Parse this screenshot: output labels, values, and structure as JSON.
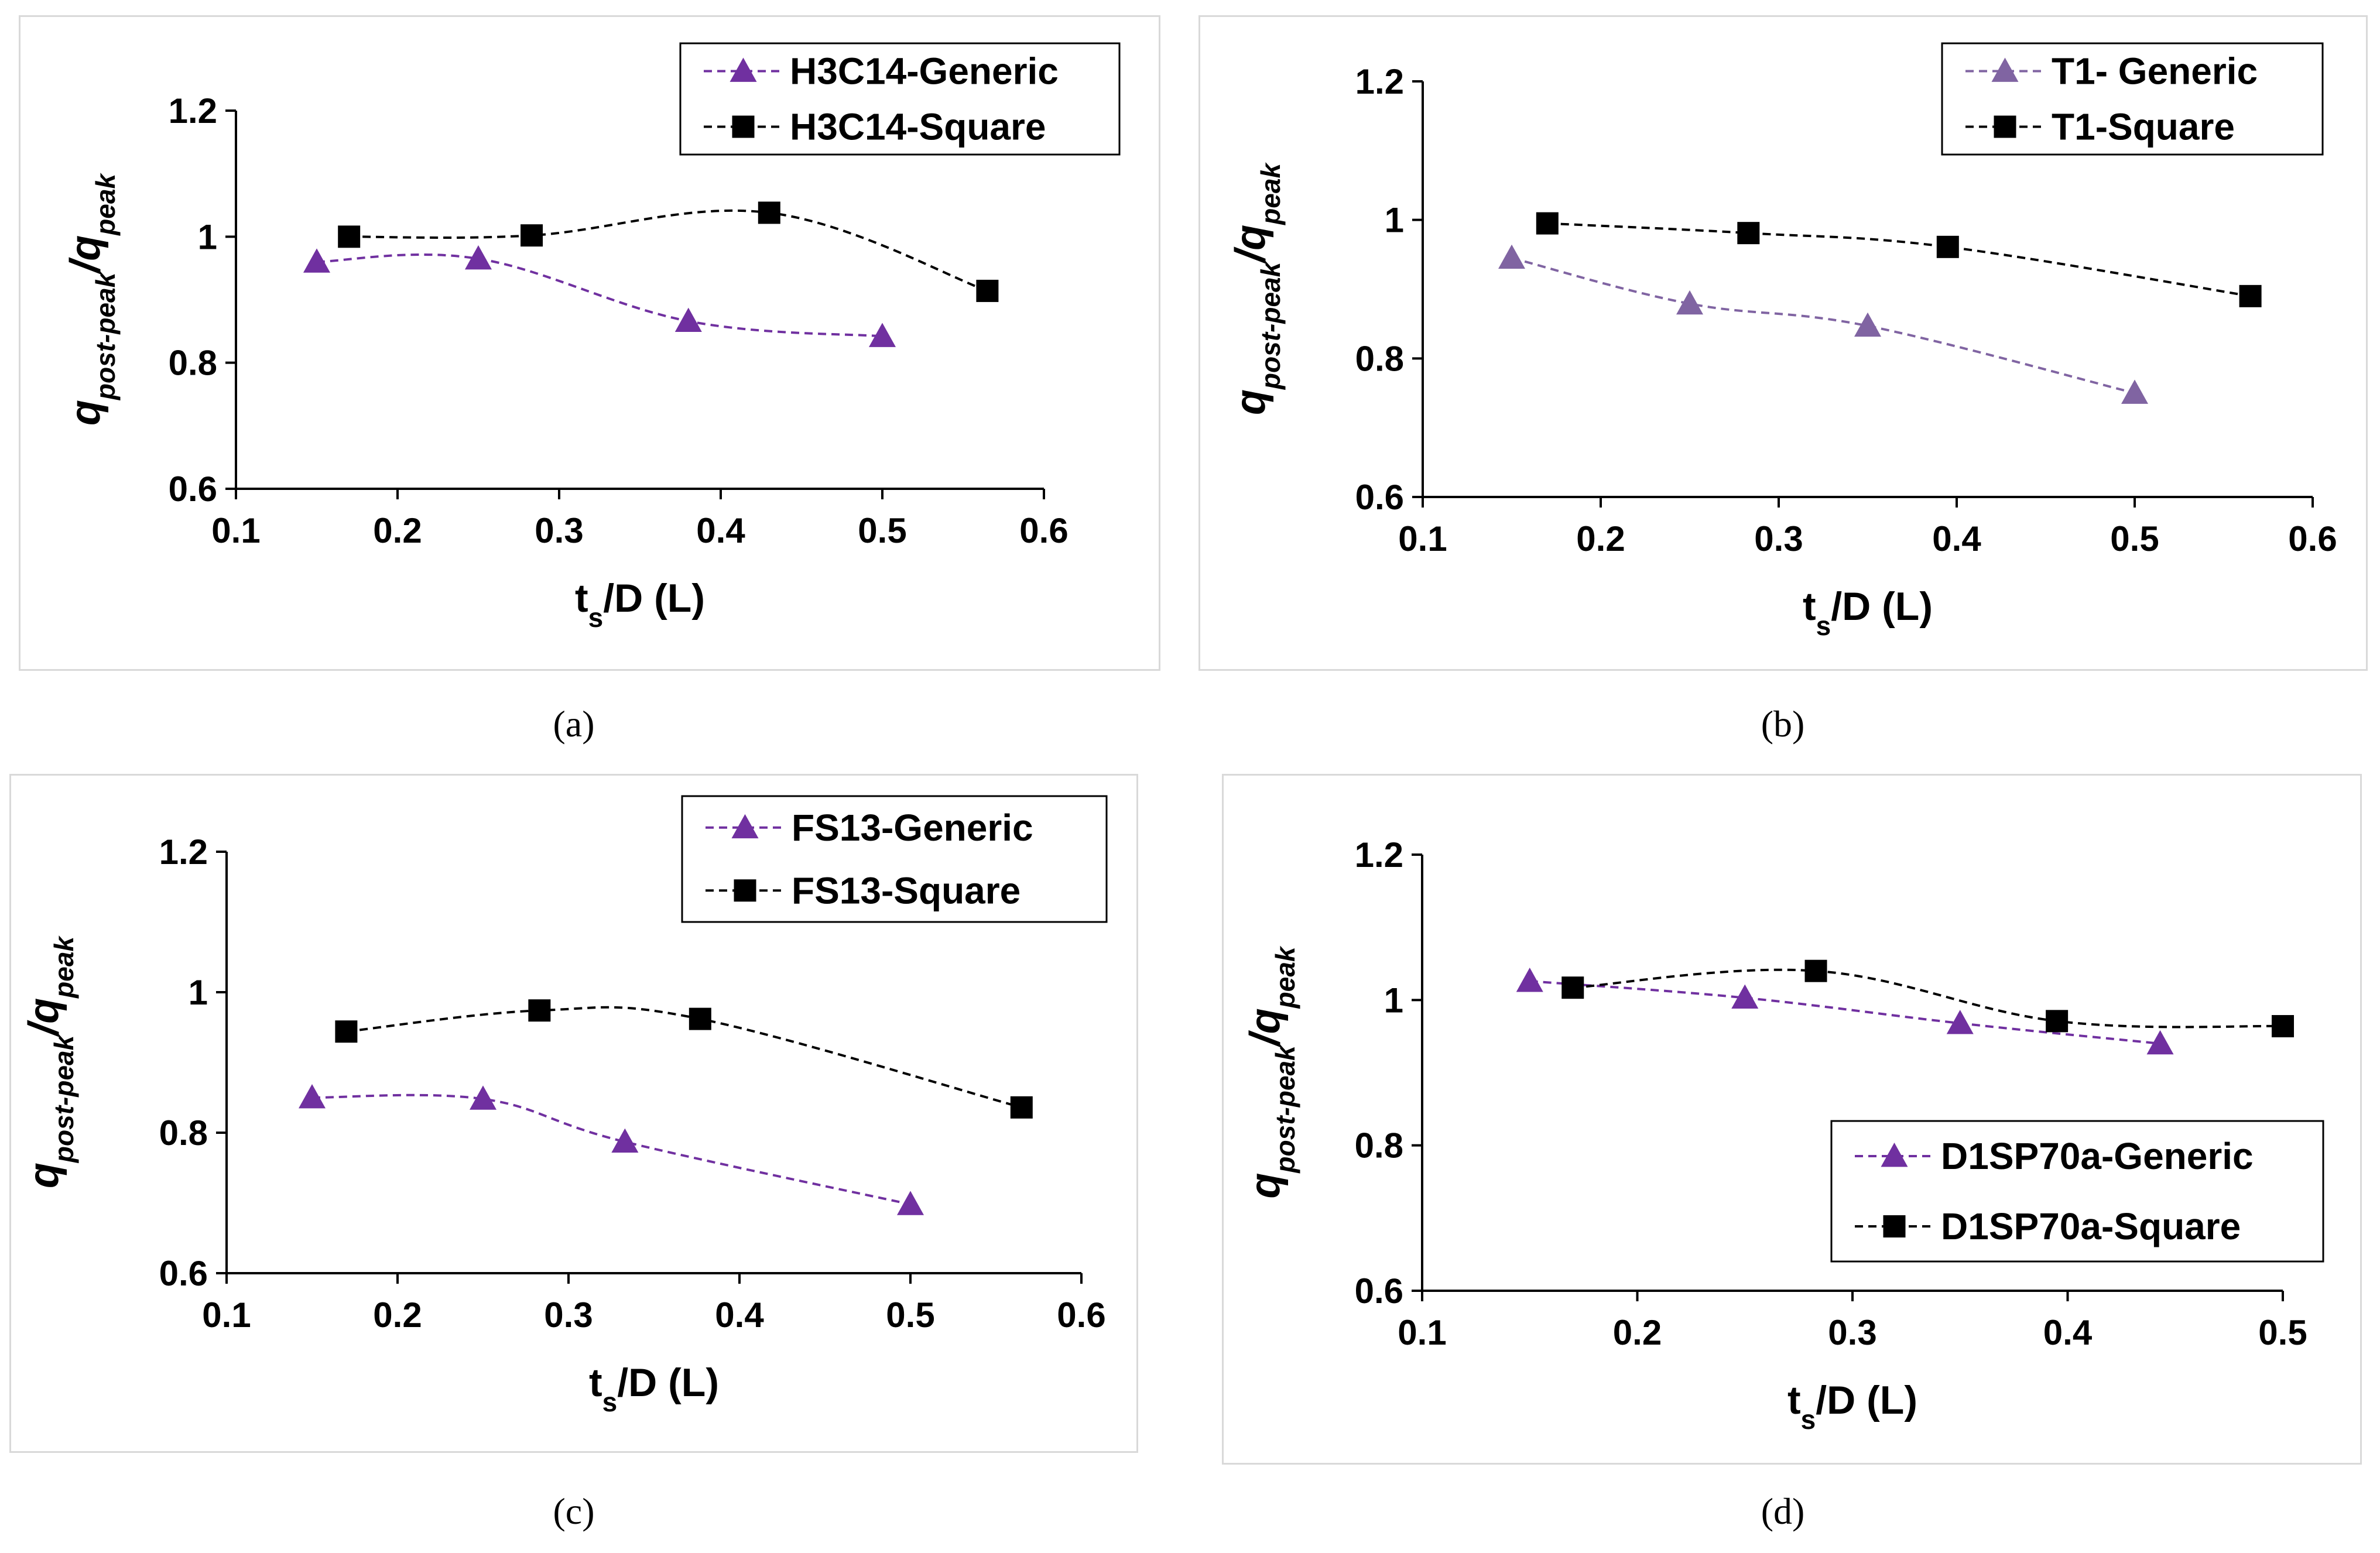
{
  "chart_data": [
    {
      "id": "a",
      "type": "line",
      "caption": "(a)",
      "title": "",
      "xlabel": {
        "main": "t",
        "sub": "s",
        "rest": "/D (L)"
      },
      "ylabel": {
        "main": "q",
        "sub": "post-peak",
        "sep": "/q",
        "sub2": "peak"
      },
      "xlim": [
        0.1,
        0.6
      ],
      "ylim": [
        0.6,
        1.2
      ],
      "xticks": [
        "0.1",
        "0.2",
        "0.3",
        "0.4",
        "0.5",
        "0.6"
      ],
      "yticks": [
        "0.6",
        "0.8",
        "1",
        "1.2"
      ],
      "legend_position": "top-right",
      "series": [
        {
          "name": "H3C14-Generic",
          "marker": "triangle",
          "color": "#7030a0",
          "x": [
            0.15,
            0.25,
            0.38,
            0.5
          ],
          "y": [
            0.96,
            0.965,
            0.866,
            0.842
          ]
        },
        {
          "name": "H3C14-Square",
          "marker": "square",
          "color": "#000000",
          "x": [
            0.17,
            0.283,
            0.43,
            0.565
          ],
          "y": [
            1.0,
            1.002,
            1.038,
            0.914
          ]
        }
      ]
    },
    {
      "id": "b",
      "type": "line",
      "caption": "(b)",
      "title": "",
      "xlabel": {
        "main": "t",
        "sub": "s",
        "rest": "/D (L)"
      },
      "ylabel": {
        "main": "q",
        "sub": "post-peak",
        "sep": "/q",
        "sub2": "peak"
      },
      "xlim": [
        0.1,
        0.6
      ],
      "ylim": [
        0.6,
        1.2
      ],
      "xticks": [
        "0.1",
        "0.2",
        "0.3",
        "0.4",
        "0.5",
        "0.6"
      ],
      "yticks": [
        "0.6",
        "0.8",
        "1",
        "1.2"
      ],
      "legend_position": "top-right",
      "series": [
        {
          "name": "T1- Generic",
          "marker": "triangle",
          "color": "#8064a2",
          "x": [
            0.15,
            0.25,
            0.35,
            0.5
          ],
          "y": [
            0.945,
            0.879,
            0.847,
            0.75
          ]
        },
        {
          "name": "T1-Square",
          "marker": "square",
          "color": "#000000",
          "x": [
            0.17,
            0.283,
            0.395,
            0.565
          ],
          "y": [
            0.995,
            0.981,
            0.961,
            0.89
          ]
        }
      ]
    },
    {
      "id": "c",
      "type": "line",
      "caption": "(c)",
      "title": "",
      "xlabel": {
        "main": "t",
        "sub": "s",
        "rest": "/D (L)"
      },
      "ylabel": {
        "main": "q",
        "sub": "post-peak",
        "sep": "/q",
        "sub2": "peak"
      },
      "xlim": [
        0.1,
        0.6
      ],
      "ylim": [
        0.6,
        1.2
      ],
      "xticks": [
        "0.1",
        "0.2",
        "0.3",
        "0.4",
        "0.5",
        "0.6"
      ],
      "yticks": [
        "0.6",
        "0.8",
        "1",
        "1.2"
      ],
      "legend_position": "top-right",
      "series": [
        {
          "name": "FS13-Generic",
          "marker": "triangle",
          "color": "#7030a0",
          "x": [
            0.15,
            0.25,
            0.333,
            0.5
          ],
          "y": [
            0.85,
            0.848,
            0.787,
            0.698
          ]
        },
        {
          "name": "FS13-Square",
          "marker": "square",
          "color": "#000000",
          "x": [
            0.17,
            0.283,
            0.377,
            0.565
          ],
          "y": [
            0.944,
            0.974,
            0.962,
            0.836
          ]
        }
      ]
    },
    {
      "id": "d",
      "type": "line",
      "caption": "(d)",
      "title": "",
      "xlabel": {
        "main": "t",
        "sub": "s",
        "rest": "/D (L)"
      },
      "ylabel": {
        "main": "q",
        "sub": "post-peak",
        "sep": "/q",
        "sub2": "peak"
      },
      "xlim": [
        0.1,
        0.5
      ],
      "ylim": [
        0.6,
        1.2
      ],
      "xticks": [
        "0.1",
        "0.2",
        "0.3",
        "0.4",
        "0.5"
      ],
      "yticks": [
        "0.6",
        "0.8",
        "1",
        "1.2"
      ],
      "legend_position": "bottom-right",
      "series": [
        {
          "name": "D1SP70a-Generic",
          "marker": "triangle",
          "color": "#7030a0",
          "x": [
            0.15,
            0.25,
            0.35,
            0.443
          ],
          "y": [
            1.026,
            1.003,
            0.968,
            0.94
          ]
        },
        {
          "name": "D1SP70a-Square",
          "marker": "square",
          "color": "#000000",
          "x": [
            0.17,
            0.283,
            0.395,
            0.5
          ],
          "y": [
            1.017,
            1.04,
            0.971,
            0.964
          ]
        }
      ]
    }
  ]
}
